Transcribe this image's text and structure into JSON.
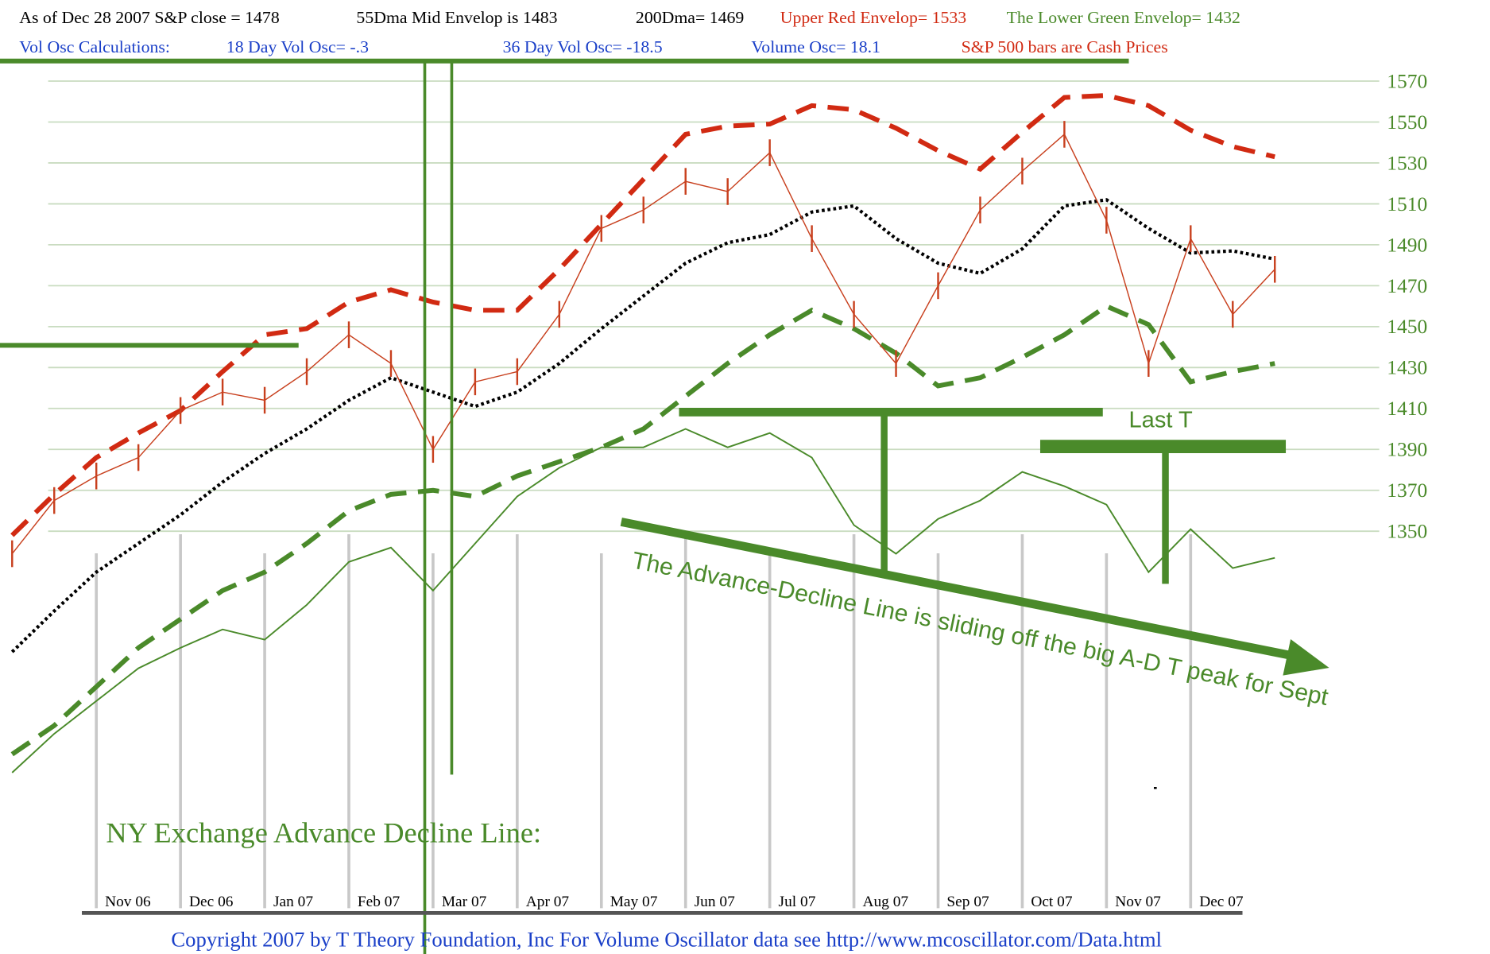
{
  "chart_data": {
    "type": "line",
    "header": [
      "As of Dec 28  2007  S&P close = 1478",
      "55Dma Mid Envelop is  1483",
      "200Dma=  1469",
      "Upper Red Envelop= 1533",
      "The Lower Green Envelop=  1432",
      "Vol Osc Calculations:",
      "18 Day Vol Osc= -.3",
      "36 Day Vol Osc= -18.5",
      "Volume Osc=  18.1",
      "S&P 500 bars are Cash Prices"
    ],
    "annotations": [
      "Last T",
      "The Advance-Decline Line is sliding off the big A-D T peak for Sept",
      "NY Exchange Advance Decline Line:",
      "Copyright 2007 by T Theory Foundation, Inc  For Volume Oscillator data see http://www.mcoscillator.com/Data.html"
    ],
    "categories": [
      null,
      null,
      "Nov 06",
      null,
      "Dec 06",
      null,
      "Jan 07",
      null,
      "Feb 07",
      null,
      "Mar 07",
      null,
      "Apr 07",
      null,
      "May 07",
      null,
      "Jun 07",
      null,
      "Jul 07",
      null,
      "Aug 07",
      null,
      "Sep 07",
      null,
      "Oct 07",
      null,
      "Nov 07",
      null,
      "Dec 07",
      null,
      null
    ],
    "ylim": [
      1176,
      1577
    ],
    "yticks": [
      1350,
      1370,
      1390,
      1410,
      1430,
      1450,
      1470,
      1490,
      1510,
      1530,
      1550,
      1570
    ],
    "grid": true,
    "series": [
      {
        "color": "#d12a12",
        "style": "dashed",
        "values": [
          1348,
          1368,
          1386,
          1398,
          1409,
          1428,
          1446,
          1449,
          1462,
          1468,
          1462,
          1458,
          1458,
          1478,
          1500,
          1522,
          1544,
          1548,
          1549,
          1558,
          1556,
          1547,
          1536,
          1527,
          1545,
          1562,
          1563,
          1558,
          1546,
          1538,
          1533
        ]
      },
      {
        "color": "#000000",
        "style": "dotted",
        "values": [
          1291,
          1311,
          1330,
          1344,
          1358,
          1374,
          1388,
          1400,
          1414,
          1425,
          1418,
          1411,
          1418,
          1432,
          1449,
          1465,
          1481,
          1491,
          1495,
          1506,
          1509,
          1493,
          1481,
          1476,
          1488,
          1509,
          1512,
          1498,
          1486,
          1487,
          1483
        ]
      },
      {
        "color": "#4a8a2a",
        "style": "dashed",
        "values": [
          1241,
          1255,
          1274,
          1293,
          1307,
          1321,
          1330,
          1344,
          1360,
          1368,
          1370,
          1367,
          1377,
          1384,
          1391,
          1400,
          1416,
          1432,
          1446,
          1458,
          1449,
          1437,
          1421,
          1425,
          1435,
          1446,
          1460,
          1451,
          1423,
          1428,
          1432
        ]
      },
      {
        "color": "#c8401e",
        "style": "bars",
        "values": [
          1339,
          1365,
          1377,
          1386,
          1409,
          1418,
          1414,
          1428,
          1446,
          1432,
          1390,
          1423,
          1428,
          1456,
          1498,
          1507,
          1521,
          1516,
          1535,
          1493,
          1456,
          1432,
          1470,
          1507,
          1526,
          1544,
          1502,
          1432,
          1493,
          1456,
          1478
        ]
      },
      {
        "color": "#4a8a2a",
        "style": "solid",
        "values": [
          1232,
          1251,
          1267,
          1283,
          1293,
          1302,
          1297,
          1314,
          1335,
          1342,
          1321,
          1344,
          1367,
          1381,
          1391,
          1391,
          1400,
          1391,
          1398,
          1386,
          1353,
          1339,
          1356,
          1365,
          1379,
          1372,
          1363,
          1330,
          1351,
          1332,
          1337
        ]
      }
    ]
  }
}
